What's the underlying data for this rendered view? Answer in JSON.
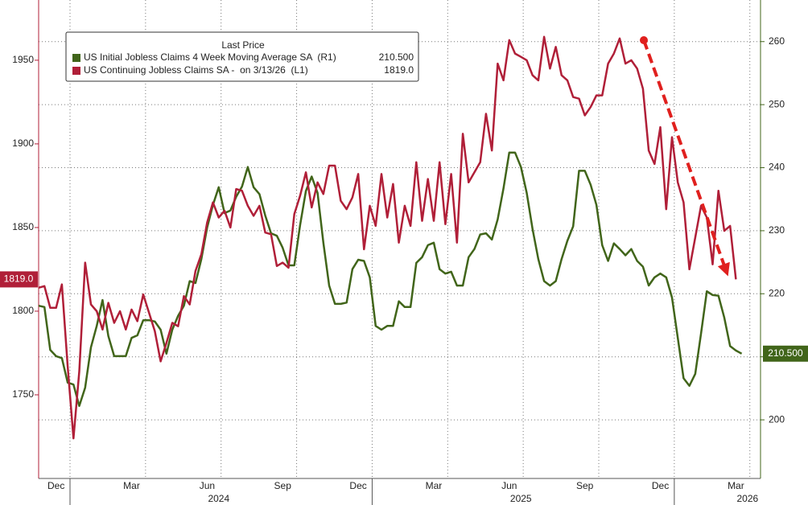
{
  "chart_data": {
    "type": "line",
    "legend_title": "Last Price",
    "categories": [
      null,
      null,
      null,
      "Dec",
      null,
      null,
      null,
      null,
      null,
      null,
      null,
      null,
      null,
      null,
      null,
      null,
      "Mar",
      null,
      null,
      null,
      null,
      null,
      null,
      null,
      null,
      null,
      null,
      null,
      null,
      "Jun",
      null,
      null,
      null,
      null,
      null,
      null,
      null,
      null,
      null,
      null,
      null,
      null,
      "Sep",
      null,
      null,
      null,
      null,
      null,
      null,
      null,
      null,
      null,
      null,
      null,
      null,
      "Dec",
      null,
      null,
      null,
      null,
      null,
      null,
      null,
      null,
      null,
      null,
      null,
      null,
      "Mar",
      null,
      null,
      null,
      null,
      null,
      null,
      null,
      null,
      null,
      null,
      null,
      null,
      "Jun",
      null,
      null,
      null,
      null,
      null,
      null,
      null,
      null,
      null,
      null,
      null,
      null,
      "Sep",
      null,
      null,
      null,
      null,
      null,
      null,
      null,
      null,
      null,
      null,
      null,
      null,
      "Dec",
      null,
      null,
      null,
      null,
      null,
      null,
      null,
      null,
      null,
      null,
      null,
      null,
      "Mar",
      null
    ],
    "year_categories": [
      null,
      null,
      null,
      null,
      null,
      null,
      null,
      null,
      null,
      null,
      null,
      null,
      null,
      null,
      null,
      null,
      null,
      null,
      null,
      null,
      null,
      null,
      null,
      null,
      null,
      null,
      null,
      null,
      null,
      null,
      null,
      "2024",
      null,
      null,
      null,
      null,
      null,
      null,
      null,
      null,
      null,
      null,
      null,
      null,
      null,
      null,
      null,
      null,
      null,
      null,
      null,
      null,
      null,
      null,
      null,
      null,
      null,
      null,
      null,
      null,
      null,
      null,
      null,
      null,
      null,
      null,
      null,
      null,
      null,
      null,
      null,
      null,
      null,
      null,
      null,
      null,
      null,
      null,
      null,
      null,
      null,
      null,
      null,
      "2025",
      null,
      null,
      null,
      null,
      null,
      null,
      null,
      null,
      null,
      null,
      null,
      null,
      null,
      null,
      null,
      null,
      null,
      null,
      null,
      null,
      null,
      null,
      null,
      null,
      null,
      null,
      null,
      null,
      null,
      null,
      null,
      null,
      null,
      null,
      null,
      null,
      null,
      null,
      "2026",
      null,
      null,
      null,
      null
    ],
    "series": [
      {
        "name": "US Initial Jobless Claims 4 Week Moving Average SA  (R1)",
        "color": "#41651a",
        "axis": "y2",
        "last_label": "210.500",
        "values": [
          218.1,
          217.9,
          211.1,
          210.1,
          209.8,
          205.9,
          205.6,
          202.2,
          205.1,
          211.5,
          214.9,
          219.0,
          213.3,
          210.1,
          210.1,
          210.1,
          213.0,
          213.4,
          215.8,
          215.8,
          215.6,
          214.3,
          210.5,
          214.3,
          216.5,
          218.1,
          222.0,
          221.7,
          225.5,
          230.5,
          234.1,
          236.9,
          232.8,
          233.2,
          235.4,
          237.0,
          240.1,
          236.9,
          235.8,
          232.4,
          229.6,
          229.2,
          227.3,
          224.5,
          224.5,
          230.9,
          236.3,
          238.6,
          236.0,
          228.1,
          221.3,
          218.4,
          218.4,
          218.6,
          223.9,
          225.4,
          225.2,
          222.6,
          214.9,
          214.3,
          214.9,
          214.9,
          218.8,
          217.9,
          217.9,
          224.9,
          225.8,
          227.7,
          228.1,
          223.9,
          223.2,
          223.5,
          221.3,
          221.3,
          225.8,
          227.1,
          229.4,
          229.6,
          228.6,
          231.8,
          236.7,
          242.4,
          242.4,
          240.1,
          236.0,
          230.3,
          225.5,
          222.0,
          221.3,
          222.0,
          225.5,
          228.4,
          230.7,
          239.5,
          239.5,
          237.3,
          234.1,
          227.7,
          225.2,
          228.0,
          227.1,
          226.1,
          227.1,
          225.2,
          224.3,
          221.3,
          222.6,
          223.2,
          222.6,
          219.4,
          213.0,
          206.6,
          205.4,
          207.3,
          213.7,
          220.4,
          219.8,
          219.7,
          216.2,
          211.7,
          211.0,
          210.5
        ]
      },
      {
        "name": "US Continuing Jobless Claims SA -  on 3/13/26  (L1)",
        "color": "#b01f38",
        "axis": "y",
        "last_label": "1819.0",
        "values": [
          1814,
          1815,
          1802,
          1802,
          1816,
          1767,
          1724,
          1764,
          1829,
          1804,
          1800,
          1789,
          1805,
          1793,
          1800,
          1789,
          1801,
          1794,
          1810,
          1799,
          1788,
          1770,
          1781,
          1793,
          1791,
          1809,
          1804,
          1824,
          1834,
          1853,
          1865,
          1856,
          1860,
          1850,
          1873,
          1872,
          1863,
          1857,
          1863,
          1847,
          1846,
          1827,
          1829,
          1826,
          1858,
          1869,
          1883,
          1862,
          1877,
          1870,
          1887,
          1887,
          1866,
          1861,
          1868,
          1882,
          1837,
          1863,
          1851,
          1882,
          1856,
          1876,
          1841,
          1863,
          1851,
          1889,
          1854,
          1879,
          1854,
          1889,
          1852,
          1882,
          1841,
          1906,
          1877,
          1883,
          1889,
          1918,
          1896,
          1948,
          1938,
          1962,
          1954,
          1952,
          1950,
          1941,
          1938,
          1964,
          1945,
          1958,
          1941,
          1938,
          1928,
          1927,
          1917,
          1922,
          1929,
          1929,
          1948,
          1954,
          1963,
          1948,
          1950,
          1945,
          1933,
          1896,
          1888,
          1910,
          1861,
          1904,
          1877,
          1865,
          1825,
          1844,
          1863,
          1856,
          1828,
          1872,
          1848,
          1851,
          1819,
          null
        ]
      }
    ],
    "ylim": [
      1700,
      1986
    ],
    "yticks": [
      1750,
      1800,
      1850,
      1900,
      1950
    ],
    "y2lim": [
      190.7,
      266.6
    ],
    "y2ticks": [
      200,
      210,
      220,
      230,
      240,
      250,
      260
    ],
    "grid": true
  }
}
